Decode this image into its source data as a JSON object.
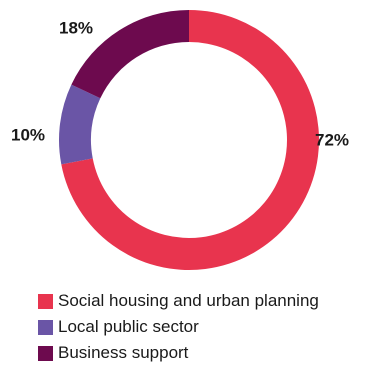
{
  "chart_data": {
    "type": "pie",
    "variant": "donut",
    "title": "",
    "categories": [
      "Social housing and urban planning",
      "Local public sector",
      "Business support"
    ],
    "values": [
      72,
      10,
      18
    ],
    "labels": [
      "72%",
      "10%",
      "18%"
    ],
    "unit": "%",
    "colors": [
      "#e8344e",
      "#6a55a6",
      "#6d0a4e"
    ],
    "start_angle_deg": 0,
    "direction": "clockwise",
    "legend_placement": "bottom"
  }
}
